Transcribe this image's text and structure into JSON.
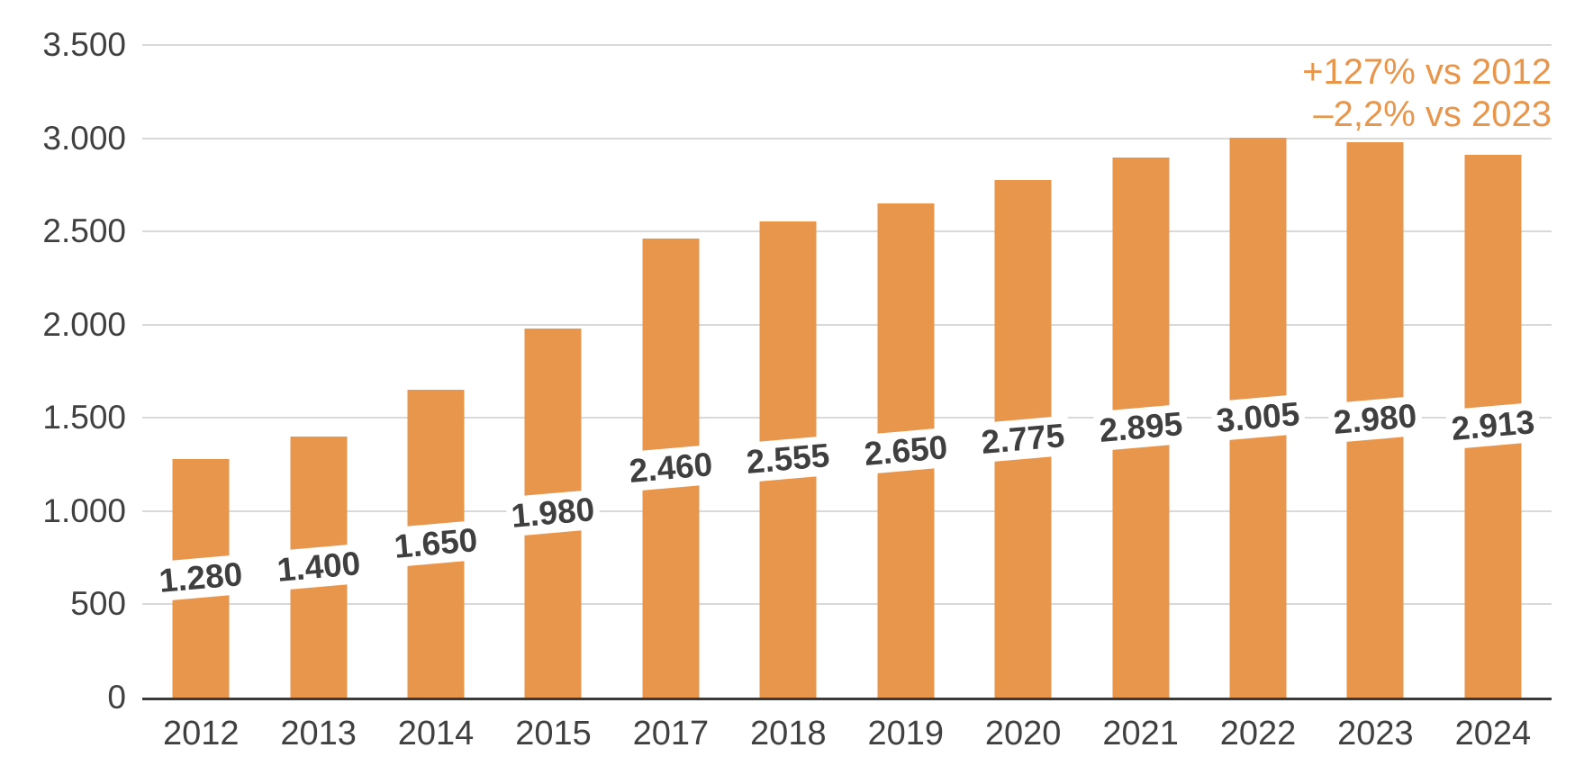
{
  "chart_data": {
    "type": "bar",
    "categories": [
      "2012",
      "2013",
      "2014",
      "2015",
      "2017",
      "2018",
      "2019",
      "2020",
      "2021",
      "2022",
      "2023",
      "2024"
    ],
    "values": [
      1280,
      1400,
      1650,
      1980,
      2460,
      2555,
      2650,
      2775,
      2895,
      3005,
      2980,
      2913
    ],
    "bar_labels": [
      "1.280",
      "1.400",
      "1.650",
      "1.980",
      "2.460",
      "2.555",
      "2.650",
      "2.775",
      "2.895",
      "3.005",
      "2.980",
      "2.913"
    ],
    "y_tick_values": [
      0,
      500,
      1000,
      1500,
      2000,
      2500,
      3000,
      3500
    ],
    "y_tick_labels": [
      "0",
      "500",
      "1.000",
      "1.500",
      "2.000",
      "2.500",
      "3.000",
      "3.500"
    ],
    "ylim": [
      0,
      3500
    ],
    "grid": true,
    "legend": "none",
    "title": "",
    "xlabel": "",
    "ylabel": "",
    "annotations": [
      "+127% vs 2012",
      "–2,2% vs 2023"
    ],
    "colors": {
      "bar": "#E9964D",
      "annotation": "#E9964D",
      "label_text": "#3F3F3F",
      "label_bg": "#FFFFFF",
      "axis_text": "#404040",
      "axis_line": "#3A3A3A",
      "gridline": "#D9D9D9"
    }
  }
}
